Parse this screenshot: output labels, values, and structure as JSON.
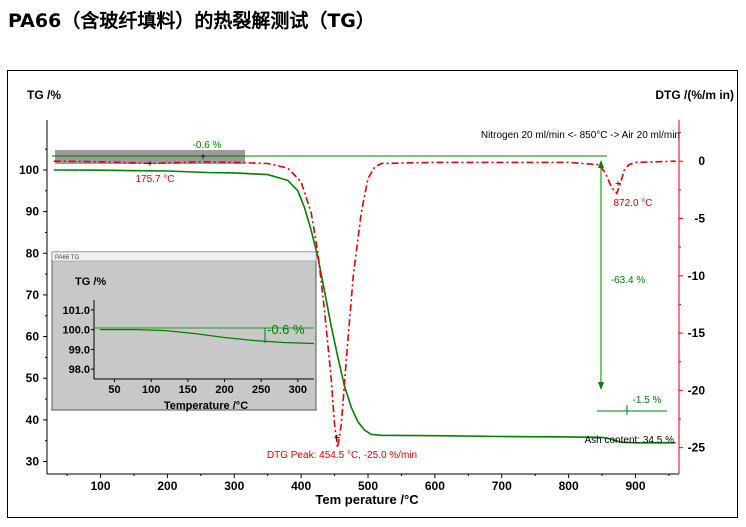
{
  "title": "PA66（含玻纤填料）的热裂解测试（TG）",
  "chart_data": {
    "type": "line",
    "xlabel": "Tem perature /°C",
    "ylabel_left": "TG /%",
    "ylabel_right": "DTG /(%/m in)",
    "xlim": [
      20,
      965
    ],
    "ylim_left": [
      27,
      112
    ],
    "ylim_right": [
      -27.3,
      3.6
    ],
    "x_ticks": [
      100,
      200,
      300,
      400,
      500,
      600,
      700,
      800,
      900
    ],
    "y_ticks_left": [
      30,
      40,
      50,
      60,
      70,
      80,
      90,
      100
    ],
    "y_ticks_right": [
      0,
      -5,
      -10,
      -15,
      -20,
      -25
    ],
    "colors": {
      "tg": "#008000",
      "dtg": "#e00000",
      "axis_right": "#e00000"
    },
    "series": [
      {
        "name": "TG",
        "axis": "left",
        "x": [
          30,
          100,
          200,
          260,
          300,
          350,
          380,
          395,
          405,
          415,
          425,
          435,
          445,
          455,
          465,
          475,
          485,
          495,
          505,
          520,
          600,
          700,
          800,
          850,
          860,
          870,
          880,
          900,
          960
        ],
        "values": [
          100,
          99.95,
          99.75,
          99.4,
          99.3,
          98.9,
          97.5,
          95,
          91,
          85.5,
          79,
          71,
          62.5,
          55,
          48,
          43,
          39.5,
          37.5,
          36.5,
          36.3,
          36.2,
          36,
          35.9,
          35.8,
          35.5,
          35,
          34.6,
          34.5,
          34.5
        ]
      },
      {
        "name": "DTG",
        "axis": "right",
        "x": [
          30,
          100,
          175.7,
          250,
          300,
          350,
          380,
          400,
          415,
          425,
          435,
          445,
          450,
          454.5,
          460,
          468,
          478,
          490,
          500,
          510,
          520,
          600,
          700,
          800,
          845,
          855,
          862,
          868,
          872,
          877,
          883,
          890,
          900,
          960
        ],
        "values": [
          0,
          -0.05,
          -0.2,
          -0.05,
          -0.1,
          -0.2,
          -0.6,
          -1.8,
          -4.5,
          -8,
          -13,
          -19,
          -23,
          -25,
          -23,
          -17,
          -10,
          -4.5,
          -1.5,
          -0.5,
          -0.2,
          -0.1,
          -0.1,
          -0.1,
          -0.3,
          -1,
          -2,
          -2.6,
          -2.8,
          -2,
          -0.8,
          -0.3,
          -0.1,
          0
        ]
      }
    ],
    "annotations": {
      "tg_loss_1": "-0.6 %",
      "dtg_min_1": "175.7 °C",
      "nitrogen": "Nitrogen 20 ml/min <- 850°C -> Air 20 ml/min",
      "dtg_min_2": "872.0 °C",
      "tg_loss_2": "-63.4 %",
      "tg_loss_3": "-1.5 %",
      "dtg_peak": "DTG Peak: 454.5 °C, -25.0 %/min",
      "ash": "Ash content: 34.5 %"
    },
    "inset": {
      "type": "line",
      "header": "PA66 TG",
      "ylabel": "TG /%",
      "xlabel": "Temperature /°C",
      "xlim": [
        22,
        322
      ],
      "ylim": [
        97.5,
        101.5
      ],
      "x_ticks": [
        50,
        100,
        150,
        200,
        250,
        300
      ],
      "y_ticks": [
        "101.0",
        "100.0",
        "99.0",
        "98.0"
      ],
      "annotation": "-0.6 %",
      "series": [
        {
          "name": "TG",
          "x": [
            30,
            80,
            120,
            160,
            200,
            240,
            260,
            280,
            322
          ],
          "values": [
            100,
            100,
            99.95,
            99.8,
            99.6,
            99.45,
            99.4,
            99.35,
            99.3
          ]
        }
      ]
    }
  }
}
